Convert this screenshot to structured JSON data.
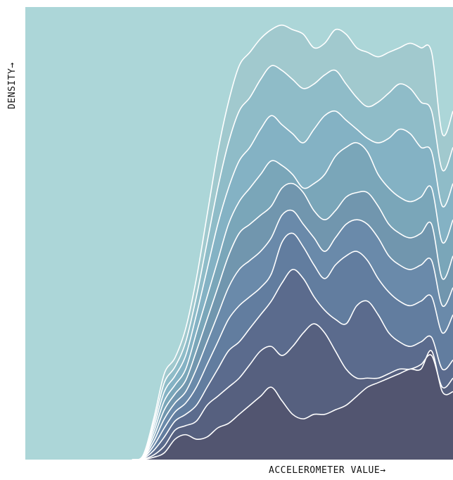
{
  "chart_data": {
    "type": "area",
    "stacked": true,
    "xlabel": "ACCELEROMETER VALUE→",
    "ylabel": "DENSITY→",
    "grid": false,
    "legend": "none",
    "x_ticks_shown": false,
    "y_ticks_shown": false,
    "xlim": [
      0,
      40
    ],
    "ylim": [
      0,
      10
    ],
    "colors": {
      "background": "#acd6d8",
      "outline": "#ffffff",
      "layers_bottom_to_top": [
        "#525570",
        "#56607f",
        "#5b6b8d",
        "#627d9f",
        "#6a8aaa",
        "#7196ae",
        "#7aa6b9",
        "#84b2c4",
        "#8fbcc8",
        "#a1c9ce"
      ]
    },
    "x": [
      10,
      11,
      12,
      13,
      14,
      15,
      16,
      17,
      18,
      19,
      20,
      21,
      22,
      23,
      24,
      25,
      26,
      27,
      28,
      29,
      30,
      31,
      32,
      33,
      34,
      35,
      36,
      37,
      38,
      39,
      40
    ],
    "boundaries": [
      [
        0,
        0,
        0.05,
        0.15,
        0.45,
        0.55,
        0.45,
        0.5,
        0.7,
        0.8,
        1.0,
        1.2,
        1.4,
        1.6,
        1.3,
        1.0,
        0.9,
        1.0,
        1.0,
        1.1,
        1.2,
        1.4,
        1.6,
        1.7,
        1.8,
        1.9,
        2.0,
        2.0,
        2.4,
        1.5,
        1.5
      ],
      [
        0,
        0.01,
        0.1,
        0.3,
        0.65,
        0.75,
        0.85,
        1.2,
        1.4,
        1.6,
        1.8,
        2.1,
        2.4,
        2.5,
        2.3,
        2.5,
        2.8,
        3.0,
        2.8,
        2.4,
        2.0,
        1.8,
        1.8,
        1.8,
        1.9,
        2.0,
        2.0,
        2.1,
        2.3,
        1.6,
        1.8
      ],
      [
        0,
        0.02,
        0.2,
        0.5,
        0.85,
        1.0,
        1.2,
        1.6,
        2.0,
        2.4,
        2.6,
        2.9,
        3.2,
        3.5,
        3.9,
        4.2,
        4.0,
        3.6,
        3.3,
        3.1,
        3.0,
        3.4,
        3.5,
        3.2,
        2.8,
        2.6,
        2.5,
        2.6,
        2.7,
        2.0,
        2.2
      ],
      [
        0,
        0.03,
        0.3,
        0.7,
        1.05,
        1.25,
        1.6,
        2.1,
        2.6,
        3.1,
        3.4,
        3.6,
        3.8,
        4.1,
        4.8,
        5.0,
        4.7,
        4.3,
        4.0,
        4.3,
        4.5,
        4.6,
        4.4,
        4.0,
        3.7,
        3.5,
        3.4,
        3.5,
        3.6,
        2.8,
        3.2
      ],
      [
        0,
        0.04,
        0.4,
        0.9,
        1.25,
        1.5,
        2.0,
        2.6,
        3.2,
        3.8,
        4.2,
        4.4,
        4.6,
        4.9,
        5.4,
        5.5,
        5.2,
        4.9,
        4.6,
        4.9,
        5.2,
        5.3,
        5.2,
        4.9,
        4.5,
        4.3,
        4.2,
        4.3,
        4.4,
        3.4,
        3.8
      ],
      [
        0,
        0.05,
        0.5,
        1.1,
        1.45,
        1.75,
        2.4,
        3.1,
        3.8,
        4.5,
        5.0,
        5.2,
        5.4,
        5.6,
        6.0,
        6.1,
        5.9,
        5.5,
        5.3,
        5.5,
        5.8,
        5.9,
        5.9,
        5.6,
        5.2,
        5.0,
        4.9,
        5.0,
        5.2,
        4.0,
        4.5
      ],
      [
        0,
        0.06,
        0.6,
        1.3,
        1.65,
        2.0,
        2.8,
        3.6,
        4.4,
        5.2,
        5.7,
        6.0,
        6.3,
        6.6,
        6.5,
        6.3,
        6.0,
        6.1,
        6.3,
        6.7,
        6.9,
        7.0,
        6.8,
        6.3,
        6.0,
        5.8,
        5.7,
        5.8,
        6.0,
        4.8,
        5.3
      ],
      [
        0,
        0.07,
        0.7,
        1.5,
        1.85,
        2.3,
        3.2,
        4.2,
        5.2,
        6.0,
        6.6,
        6.9,
        7.3,
        7.6,
        7.4,
        7.2,
        7.0,
        7.3,
        7.6,
        7.7,
        7.5,
        7.3,
        7.1,
        7.0,
        7.1,
        7.3,
        7.2,
        6.9,
        6.8,
        5.6,
        6.1
      ],
      [
        0,
        0.08,
        0.8,
        1.7,
        2.05,
        2.6,
        3.6,
        4.8,
        6.0,
        7.0,
        7.7,
        8.0,
        8.4,
        8.7,
        8.6,
        8.4,
        8.2,
        8.3,
        8.5,
        8.6,
        8.3,
        8.0,
        7.8,
        7.9,
        8.1,
        8.3,
        8.2,
        7.9,
        7.7,
        6.4,
        6.9
      ],
      [
        0,
        0.09,
        0.9,
        1.9,
        2.25,
        2.9,
        4.0,
        5.4,
        6.8,
        7.9,
        8.7,
        9.0,
        9.3,
        9.5,
        9.6,
        9.5,
        9.4,
        9.1,
        9.2,
        9.5,
        9.4,
        9.1,
        9.0,
        8.9,
        9.0,
        9.1,
        9.2,
        9.1,
        9.0,
        7.2,
        7.7
      ]
    ]
  }
}
